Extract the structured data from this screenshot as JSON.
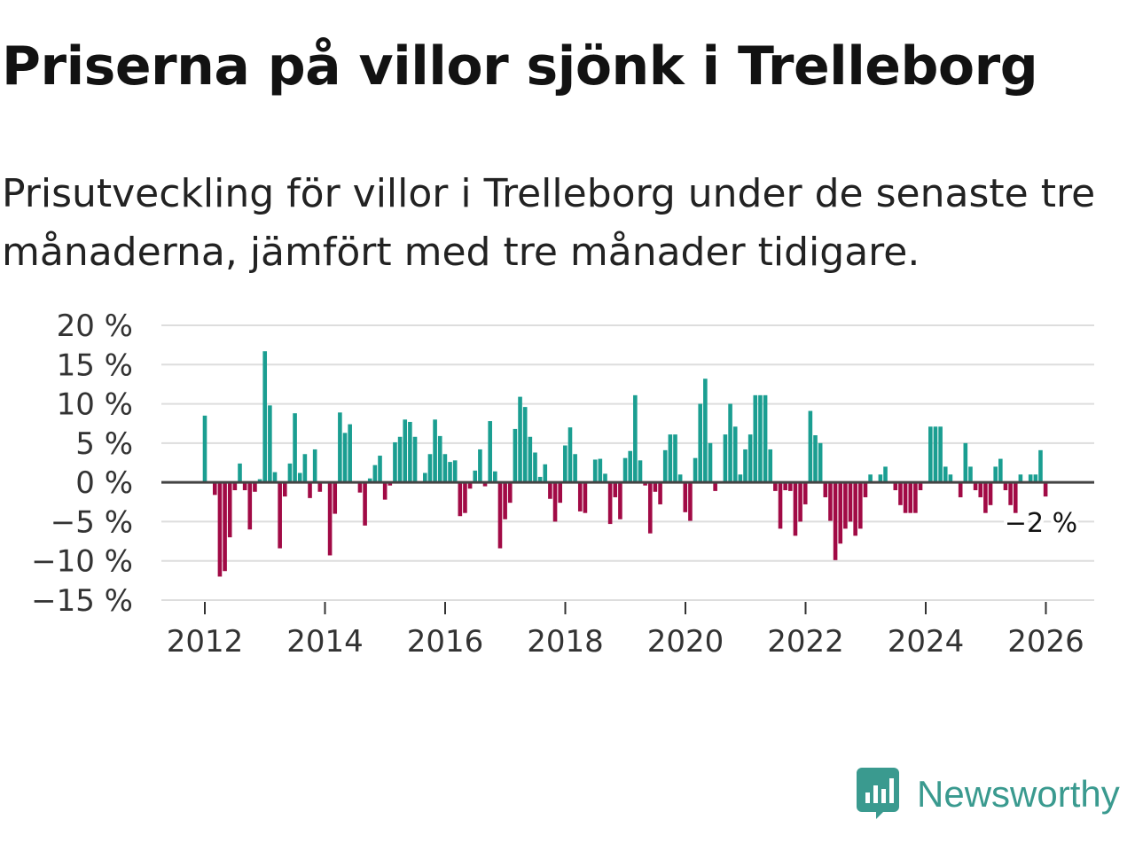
{
  "title": "Priserna på villor sjönk i Trelleborg",
  "subtitle": "Prisutveckling för villor i Trelleborg under de senaste tre månaderna, jämfört med tre månader tidigare.",
  "brand": {
    "name": "Newsworthy",
    "icon": "newsworthy-logo-icon"
  },
  "colors": {
    "positive": "#1a9e91",
    "negative": "#a10a45",
    "grid": "#dddddd",
    "zero_line": "#444444"
  },
  "chart_data": {
    "type": "bar",
    "title": "Priserna på villor sjönk i Trelleborg",
    "xlabel": "",
    "ylabel": "",
    "ylim": [
      -15,
      20
    ],
    "yticks": [
      -15,
      -10,
      -5,
      0,
      5,
      10,
      15,
      20
    ],
    "ytick_labels": [
      "−15 %",
      "−10 %",
      "−5 %",
      "0 %",
      "5 %",
      "10 %",
      "15 %",
      "20 %"
    ],
    "xticks": [
      2012,
      2014,
      2016,
      2018,
      2020,
      2022,
      2024,
      2026
    ],
    "xtick_labels": [
      "2012",
      "2014",
      "2016",
      "2018",
      "2020",
      "2022",
      "2024",
      "2026"
    ],
    "x_start": 2012.0,
    "x_step_years": 0.0833,
    "grid": true,
    "end_label": "−2 %",
    "values": [
      8.5,
      0,
      -1.6,
      -12,
      -11.3,
      -7,
      -1,
      2.4,
      -1,
      -6,
      -1.2,
      0.4,
      16.7,
      9.8,
      1.3,
      -8.4,
      -1.8,
      2.4,
      8.8,
      1.2,
      3.6,
      -2,
      4.2,
      -1.2,
      0,
      -9.3,
      -4,
      8.9,
      6.3,
      7.4,
      0,
      -1.3,
      -5.5,
      0.5,
      2.2,
      3.4,
      -2.2,
      -0.4,
      5.1,
      5.8,
      8,
      7.7,
      5.8,
      0,
      1.2,
      3.6,
      8,
      5.9,
      3.6,
      2.6,
      2.8,
      -4.3,
      -3.9,
      -0.8,
      1.5,
      4.2,
      -0.5,
      7.8,
      1.4,
      -8.4,
      -4.7,
      -2.6,
      6.8,
      10.9,
      9.6,
      5.8,
      3.8,
      0.7,
      2.3,
      -2.1,
      -5,
      -2.6,
      4.7,
      7,
      3.6,
      -3.7,
      -3.9,
      0,
      2.9,
      3,
      1.1,
      -5.3,
      -1.9,
      -4.7,
      3.1,
      4,
      11.1,
      2.8,
      -0.4,
      -6.5,
      -1.2,
      -2.8,
      4.1,
      6.1,
      6.1,
      1,
      -3.8,
      -4.9,
      3.1,
      10,
      13.2,
      5,
      -1.1,
      0,
      6.1,
      10,
      7.1,
      1,
      4.2,
      6.1,
      11.1,
      11.1,
      11.1,
      4.2,
      -1.1,
      -5.9,
      -1,
      -1.1,
      -6.8,
      -5,
      -2.8,
      9.1,
      6,
      5,
      -1.9,
      -4.9,
      -9.9,
      -7.8,
      -5.9,
      -5,
      -6.8,
      -5.9,
      -1.9,
      1,
      0,
      1,
      2,
      0,
      -1,
      -2.9,
      -3.9,
      -3.9,
      -3.9,
      -1,
      0,
      7.1,
      7.1,
      7.1,
      2,
      1,
      0,
      -1.9,
      5,
      2,
      -1,
      -1.9,
      -3.9,
      -2.9,
      2,
      3,
      -1,
      -2.9,
      -3.9,
      1,
      0,
      1,
      1,
      4.1,
      -1.8
    ]
  }
}
